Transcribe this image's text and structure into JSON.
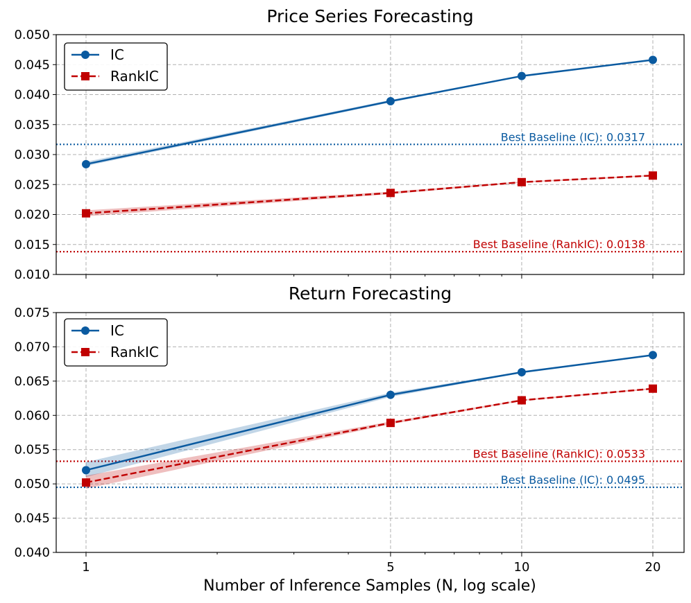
{
  "chart_data": [
    {
      "type": "line",
      "title": "Price Series Forecasting",
      "xscale": "log",
      "x": [
        1,
        5,
        10,
        20
      ],
      "xticklabels": [
        "1",
        "5",
        "10",
        "20"
      ],
      "xlabel": "",
      "ylabel": "",
      "ylim": [
        0.01,
        0.05
      ],
      "yticks": [
        0.01,
        0.015,
        0.02,
        0.025,
        0.03,
        0.035,
        0.04,
        0.045,
        0.05
      ],
      "yticklabels": [
        "0.010",
        "0.015",
        "0.020",
        "0.025",
        "0.030",
        "0.035",
        "0.040",
        "0.045",
        "0.050"
      ],
      "grid": true,
      "legend_position": "top-left",
      "series": [
        {
          "name": "IC",
          "color": "#0a5aa0",
          "linestyle": "solid",
          "marker": "circle",
          "values": [
            0.0284,
            0.0389,
            0.0431,
            0.0458
          ],
          "band_low": [
            0.0281,
            0.0387,
            0.043,
            0.0457
          ],
          "band_high": [
            0.0288,
            0.0391,
            0.0432,
            0.0459
          ]
        },
        {
          "name": "RankIC",
          "color": "#c00000",
          "linestyle": "dashed",
          "marker": "square",
          "values": [
            0.0202,
            0.0236,
            0.0254,
            0.0265
          ],
          "band_low": [
            0.0197,
            0.0234,
            0.0253,
            0.0264
          ],
          "band_high": [
            0.0207,
            0.0238,
            0.0255,
            0.0266
          ]
        }
      ],
      "baselines": [
        {
          "label": "Best Baseline (IC): 0.0317",
          "value": 0.0317,
          "color": "#0a5aa0"
        },
        {
          "label": "Best Baseline (RankIC): 0.0138",
          "value": 0.0138,
          "color": "#c00000"
        }
      ]
    },
    {
      "type": "line",
      "title": "Return Forecasting",
      "xscale": "log",
      "x": [
        1,
        5,
        10,
        20
      ],
      "xticklabels": [
        "1",
        "5",
        "10",
        "20"
      ],
      "xlabel": "Number of Inference Samples (N, log scale)",
      "ylabel": "",
      "ylim": [
        0.04,
        0.075
      ],
      "yticks": [
        0.04,
        0.045,
        0.05,
        0.055,
        0.06,
        0.065,
        0.07,
        0.075
      ],
      "yticklabels": [
        "0.040",
        "0.045",
        "0.050",
        "0.055",
        "0.060",
        "0.065",
        "0.070",
        "0.075"
      ],
      "grid": true,
      "legend_position": "top-left",
      "series": [
        {
          "name": "IC",
          "color": "#0a5aa0",
          "linestyle": "solid",
          "marker": "circle",
          "values": [
            0.052,
            0.063,
            0.0663,
            0.0688
          ],
          "band_low": [
            0.051,
            0.0627,
            0.0662,
            0.0687
          ],
          "band_high": [
            0.0532,
            0.0633,
            0.0664,
            0.0689
          ]
        },
        {
          "name": "RankIC",
          "color": "#c00000",
          "linestyle": "dashed",
          "marker": "square",
          "values": [
            0.0502,
            0.0589,
            0.0622,
            0.0639
          ],
          "band_low": [
            0.0493,
            0.0587,
            0.0621,
            0.0638
          ],
          "band_high": [
            0.0512,
            0.0591,
            0.0623,
            0.064
          ]
        }
      ],
      "baselines": [
        {
          "label": "Best Baseline (RankIC): 0.0533",
          "value": 0.0533,
          "color": "#c00000"
        },
        {
          "label": "Best Baseline (IC): 0.0495",
          "value": 0.0495,
          "color": "#0a5aa0"
        }
      ]
    }
  ]
}
